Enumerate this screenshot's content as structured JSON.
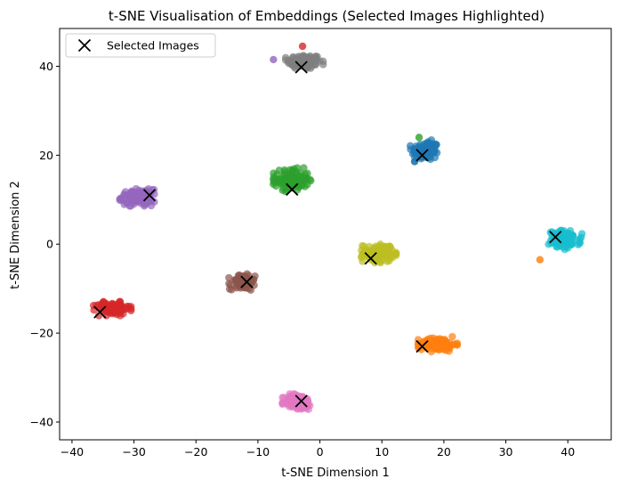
{
  "chart_data": {
    "type": "scatter",
    "title": "t-SNE Visualisation of Embeddings (Selected Images Highlighted)",
    "xlabel": "t-SNE Dimension 1",
    "ylabel": "t-SNE Dimension 2",
    "xlim": [
      -42,
      47
    ],
    "ylim": [
      -44,
      48.5
    ],
    "xticks": [
      -40,
      -30,
      -20,
      -10,
      0,
      10,
      20,
      30,
      40
    ],
    "yticks": [
      -40,
      -20,
      0,
      20,
      40
    ],
    "grid": false,
    "legend": {
      "position": "top-left",
      "entries": [
        "Selected Images"
      ]
    },
    "clusters": [
      {
        "color": "#7f7f7f",
        "center": [
          -2.5,
          41
        ],
        "spread": [
          2.5,
          1.5
        ],
        "count": 120
      },
      {
        "color": "#1f77b4",
        "center": [
          17,
          21
        ],
        "spread": [
          2.0,
          2.0
        ],
        "count": 110
      },
      {
        "color": "#2ca02c",
        "center": [
          -4.5,
          14.5
        ],
        "spread": [
          2.5,
          2.2
        ],
        "count": 110
      },
      {
        "color": "#9467bd",
        "center": [
          -29.5,
          10.5
        ],
        "spread": [
          2.3,
          1.6
        ],
        "count": 110
      },
      {
        "color": "#17becf",
        "center": [
          39.5,
          1
        ],
        "spread": [
          2.3,
          1.8
        ],
        "count": 110
      },
      {
        "color": "#bcbd22",
        "center": [
          9.5,
          -2
        ],
        "spread": [
          2.3,
          1.8
        ],
        "count": 110
      },
      {
        "color": "#8c564b",
        "center": [
          -12.5,
          -8.5
        ],
        "spread": [
          1.8,
          1.5
        ],
        "count": 100
      },
      {
        "color": "#d62728",
        "center": [
          -33.5,
          -14.5
        ],
        "spread": [
          2.5,
          1.3
        ],
        "count": 100
      },
      {
        "color": "#ff7f0e",
        "center": [
          19,
          -22.5
        ],
        "spread": [
          2.6,
          1.4
        ],
        "count": 110
      },
      {
        "color": "#e377c2",
        "center": [
          -3.5,
          -35.5
        ],
        "spread": [
          2.1,
          1.6
        ],
        "count": 110
      }
    ],
    "outliers": [
      {
        "color": "#d62728",
        "point": [
          -2.8,
          44.5
        ]
      },
      {
        "color": "#9467bd",
        "point": [
          -7.5,
          41.5
        ]
      },
      {
        "color": "#ff7f0e",
        "point": [
          35.5,
          -3.5
        ]
      },
      {
        "color": "#2ca02c",
        "point": [
          16,
          24
        ]
      }
    ],
    "selected_points": [
      [
        -3,
        39.8
      ],
      [
        16.5,
        20
      ],
      [
        -4.5,
        12.3
      ],
      [
        -27.5,
        11
      ],
      [
        38,
        1.6
      ],
      [
        8.2,
        -3.2
      ],
      [
        -11.8,
        -8.5
      ],
      [
        -35.5,
        -15.3
      ],
      [
        16.5,
        -23
      ],
      [
        -3,
        -35.3
      ]
    ]
  }
}
